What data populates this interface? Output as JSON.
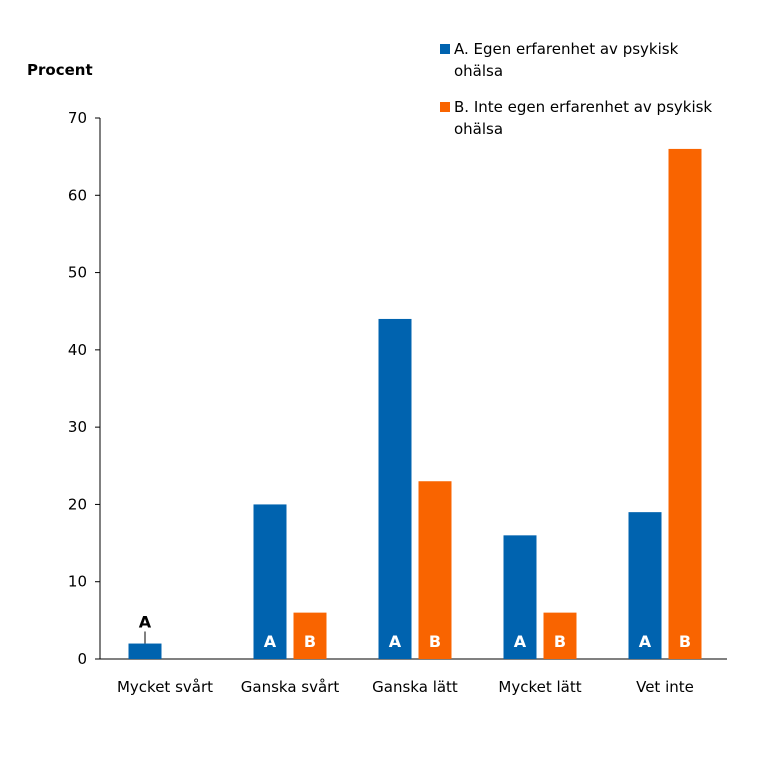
{
  "chart_data": {
    "type": "bar",
    "ylabel": "Procent",
    "xlabel": "",
    "ylim": [
      0,
      70
    ],
    "yticks": [
      0,
      10,
      20,
      30,
      40,
      50,
      60,
      70
    ],
    "categories": [
      "Mycket svårt",
      "Ganska svårt",
      "Ganska lätt",
      "Mycket lätt",
      "Vet inte"
    ],
    "series": [
      {
        "key": "A",
        "name": "A. Egen erfarenhet av psykisk ohälsa",
        "color": "#0063af",
        "values": [
          2,
          20,
          44,
          16,
          19
        ]
      },
      {
        "key": "B",
        "name": "B. Inte egen erfarenhet av psykisk ohälsa",
        "color": "#f96400",
        "values": [
          null,
          6,
          23,
          6,
          66
        ]
      }
    ],
    "bar_labels": {
      "inside_color": "#ffffff",
      "outside_color": "#000000"
    },
    "legend_position": "top-right",
    "grid": false
  }
}
